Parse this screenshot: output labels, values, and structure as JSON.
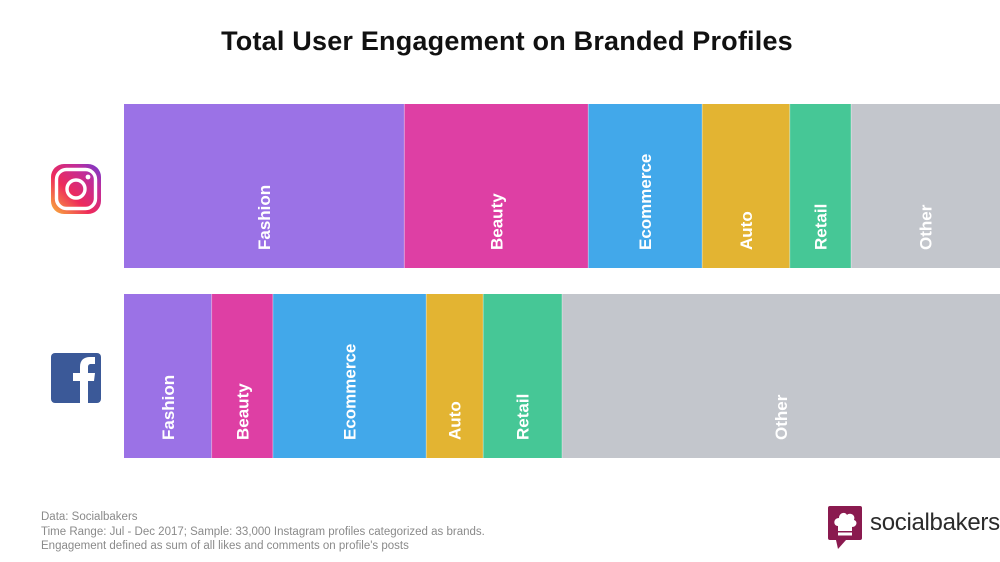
{
  "title": "Total User Engagement on Branded Profiles",
  "chart_data": {
    "type": "bar",
    "orientation": "horizontal-stacked",
    "categories": [
      "Fashion",
      "Beauty",
      "Ecommerce",
      "Auto",
      "Retail",
      "Other"
    ],
    "rows": [
      {
        "platform": "Instagram",
        "icon": "instagram-icon",
        "values": [
          32,
          21,
          13,
          10,
          7,
          17
        ]
      },
      {
        "platform": "Facebook",
        "icon": "facebook-icon",
        "values": [
          10,
          7,
          17.5,
          6.5,
          9,
          50
        ]
      }
    ],
    "colors": {
      "Fashion": "#9b72e6",
      "Beauty": "#de3fa4",
      "Ecommerce": "#42a8ea",
      "Auto": "#e3b432",
      "Retail": "#46c796",
      "Other": "#c3c6cc"
    }
  },
  "footer": {
    "lines": [
      "Data: Socialbakers",
      "Time Range: Jul - Dec 2017; Sample: 33,000 Instagram profiles categorized as brands.",
      "Engagement defined as sum of all likes and comments on profile's posts"
    ],
    "brand": "socialbakers",
    "brand_icon": "chef-hat-icon",
    "brand_color": "#8a1a4f"
  }
}
